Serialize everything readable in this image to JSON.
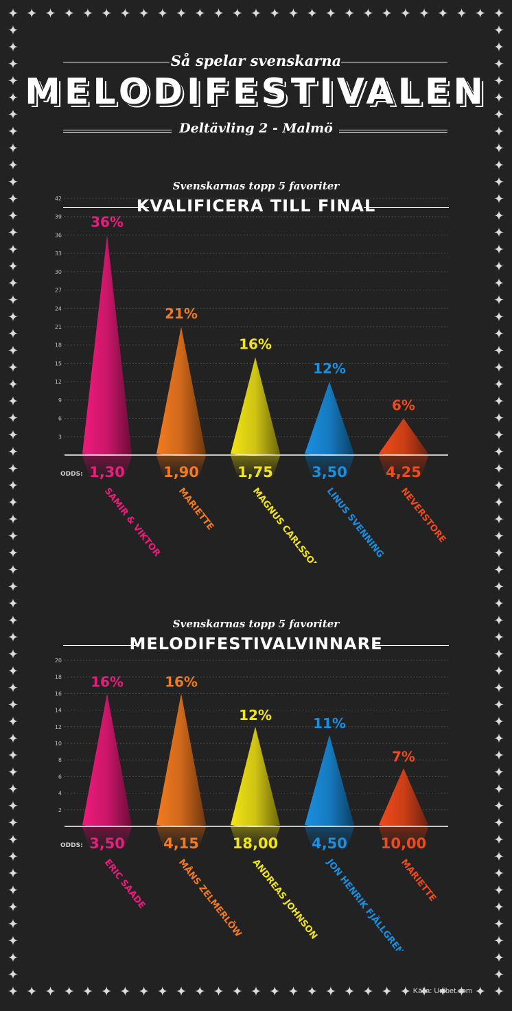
{
  "header": {
    "sup_title": "Så spelar svenskarna",
    "title": "MELODIFESTIVALEN",
    "subtitle": "Deltävling 2 - Malmö"
  },
  "colors": {
    "background": "#222223",
    "pink": "#ee1b7c",
    "orange": "#f47a20",
    "yellow": "#f2e517",
    "blue": "#1a8fe0",
    "red": "#f04a1c"
  },
  "sections": [
    {
      "kicker": "Svenskarnas topp 5 favoriter",
      "title": "KVALIFICERA TILL FINAL"
    },
    {
      "kicker": "Svenskarnas topp 5 favoriter",
      "title": "MELODIFESTIVALVINNARE"
    }
  ],
  "source": "Källa: Unibet.com",
  "chart_data": [
    {
      "type": "bar",
      "title": "KVALIFICERA TILL FINAL",
      "odds_label": "ODDS:",
      "yticks": [
        3,
        6,
        9,
        12,
        15,
        18,
        21,
        24,
        27,
        30,
        33,
        36,
        39,
        42
      ],
      "ylim": [
        0,
        42
      ],
      "grid": true,
      "categories": [
        "SAMIR & VIKTOR",
        "MARIETTE",
        "MAGNUS CARLSSON",
        "LINUS SVENNING",
        "NEVERSTORE"
      ],
      "values": [
        36,
        21,
        16,
        12,
        6
      ],
      "value_labels": [
        "36%",
        "21%",
        "16%",
        "12%",
        "6%"
      ],
      "odds": [
        "1,30",
        "1,90",
        "1,75",
        "3,50",
        "4,25"
      ],
      "colors": [
        "#ee1b7c",
        "#f47a20",
        "#f2e517",
        "#1a8fe0",
        "#f04a1c"
      ]
    },
    {
      "type": "bar",
      "title": "MELODIFESTIVALVINNARE",
      "odds_label": "ODDS:",
      "yticks": [
        2,
        4,
        6,
        8,
        10,
        12,
        14,
        16,
        18,
        20
      ],
      "ylim": [
        0,
        20
      ],
      "grid": true,
      "categories": [
        "ERIC SAADE",
        "MÅNS ZELMERLÖW",
        "ANDREAS JOHNSON",
        "JON HENRIK FJÄLLGREN",
        "MARIETTE"
      ],
      "values": [
        16,
        16,
        12,
        11,
        7
      ],
      "value_labels": [
        "16%",
        "16%",
        "12%",
        "11%",
        "7%"
      ],
      "odds": [
        "3,50",
        "4,15",
        "18,00",
        "4,50",
        "10,00"
      ],
      "colors": [
        "#ee1b7c",
        "#f47a20",
        "#f2e517",
        "#1a8fe0",
        "#f04a1c"
      ]
    }
  ]
}
